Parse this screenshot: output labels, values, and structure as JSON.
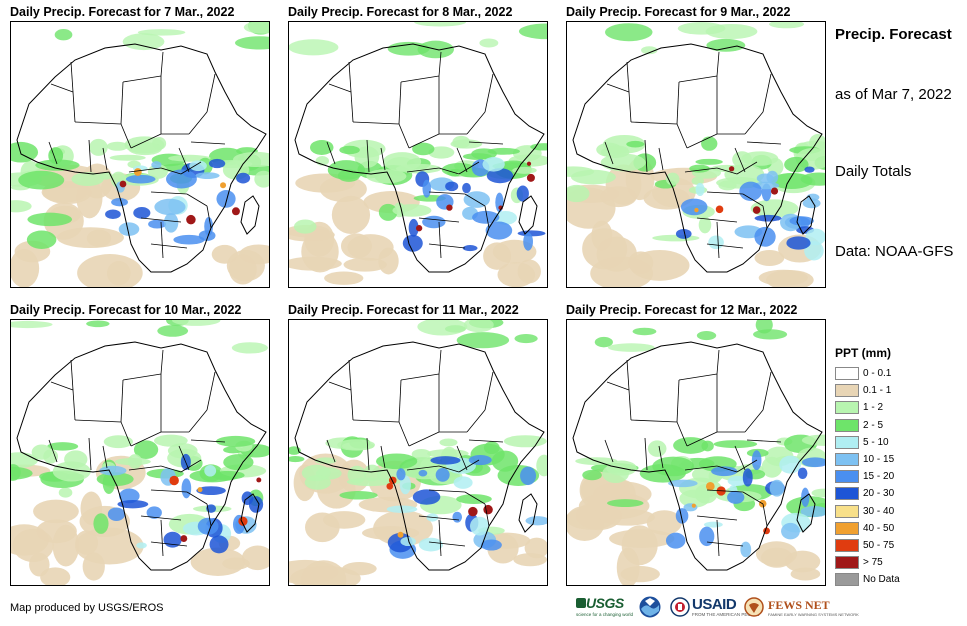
{
  "panels": [
    {
      "title": "Daily Precip. Forecast for 7 Mar., 2022"
    },
    {
      "title": "Daily Precip. Forecast for 8 Mar., 2022"
    },
    {
      "title": "Daily Precip. Forecast for 9 Mar., 2022"
    },
    {
      "title": "Daily Precip. Forecast for 10 Mar., 2022"
    },
    {
      "title": "Daily Precip. Forecast for 11 Mar., 2022"
    },
    {
      "title": "Daily Precip. Forecast for 12 Mar., 2022"
    }
  ],
  "sidebar": {
    "title": "Precip. Forecast",
    "as_of": "as of Mar 7, 2022",
    "totals": "Daily Totals",
    "source": "Data: NOAA-GFS"
  },
  "legend": {
    "title": "PPT (mm)",
    "items": [
      {
        "label": "0 - 0.1",
        "color": "#ffffff"
      },
      {
        "label": "0.1 - 1",
        "color": "#e8d5b5"
      },
      {
        "label": "1 - 2",
        "color": "#b8f5b0"
      },
      {
        "label": "2 - 5",
        "color": "#6ee46a"
      },
      {
        "label": "5 - 10",
        "color": "#b0eef2"
      },
      {
        "label": "10 - 15",
        "color": "#7dc1f2"
      },
      {
        "label": "15 - 20",
        "color": "#4a8ff0"
      },
      {
        "label": "20 - 30",
        "color": "#1d55d6"
      },
      {
        "label": "30 - 40",
        "color": "#f8e08a"
      },
      {
        "label": "40 - 50",
        "color": "#f0a030"
      },
      {
        "label": "50 - 75",
        "color": "#e03c10"
      },
      {
        "label": "> 75",
        "color": "#a01818"
      },
      {
        "label": "No Data",
        "color": "#9a9a9a"
      }
    ]
  },
  "credit": "Map produced by USGS/EROS",
  "logos": {
    "usgs": "USGS",
    "usgs_tagline": "science for a changing world",
    "usaid": "USAID",
    "usaid_tagline": "FROM THE AMERICAN PEOPLE",
    "fews": "FEWS NET",
    "fews_tagline": "FAMINE EARLY WARNING SYSTEMS NETWORK"
  }
}
